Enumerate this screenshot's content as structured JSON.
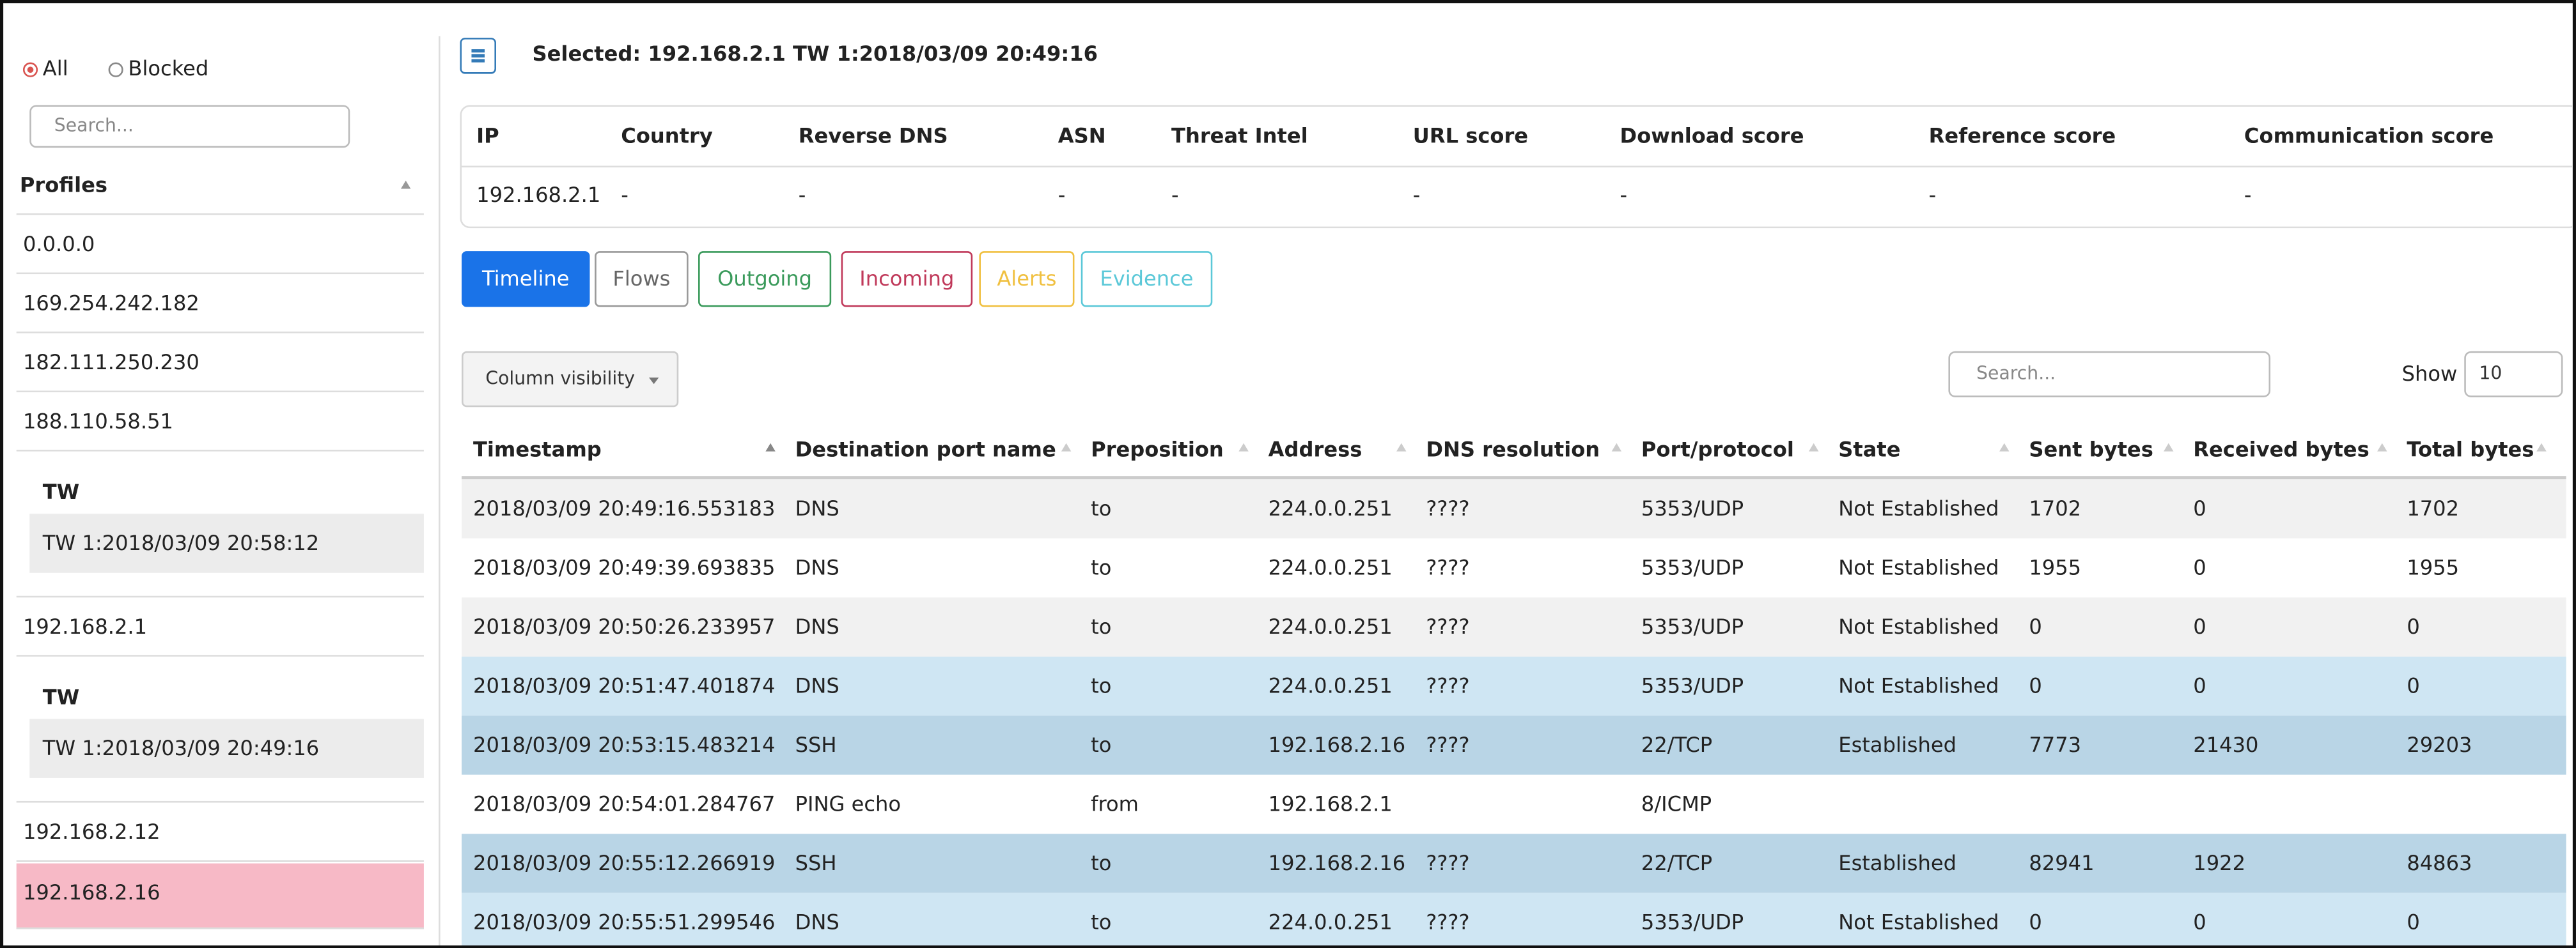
{
  "sidebar": {
    "filters": [
      "All",
      "Blocked"
    ],
    "search_placeholder": "Search...",
    "profiles_header": "Profiles",
    "items": [
      {
        "kind": "profile",
        "label": "0.0.0.0"
      },
      {
        "kind": "profile",
        "label": "169.254.242.182"
      },
      {
        "kind": "profile",
        "label": "182.111.250.230"
      },
      {
        "kind": "profile",
        "label": "188.110.58.51"
      },
      {
        "kind": "tw_header",
        "label": "TW"
      },
      {
        "kind": "tw",
        "label": "TW 1:2018/03/09 20:58:12"
      },
      {
        "kind": "profile",
        "label": "192.168.2.1"
      },
      {
        "kind": "tw_header",
        "label": "TW"
      },
      {
        "kind": "tw",
        "label": "TW 1:2018/03/09 20:49:16"
      },
      {
        "kind": "profile",
        "label": "192.168.2.12"
      },
      {
        "kind": "selected",
        "label": "192.168.2.16"
      }
    ]
  },
  "header": {
    "selected": "Selected: 192.168.2.1 TW 1:2018/03/09 20:49:16"
  },
  "info": {
    "columns": [
      "IP",
      "Country",
      "Reverse DNS",
      "ASN",
      "Threat Intel",
      "URL score",
      "Download score",
      "Reference score",
      "Communication score"
    ],
    "values": [
      "192.168.2.1",
      "-",
      "-",
      "-",
      "-",
      "-",
      "-",
      "-",
      "-"
    ]
  },
  "tabs": [
    "Timeline",
    "Flows",
    "Outgoing",
    "Incoming",
    "Alerts",
    "Evidence"
  ],
  "controls": {
    "column_visibility": "Column visibility",
    "search_placeholder": "Search...",
    "show_label": "Show",
    "show_value": "10"
  },
  "table": {
    "columns": [
      "Timestamp",
      "Destination port name",
      "Preposition",
      "Address",
      "DNS resolution",
      "Port/protocol",
      "State",
      "Sent bytes",
      "Received bytes",
      "Total bytes"
    ],
    "rows": [
      [
        "2018/03/09 20:49:16.553183",
        "DNS",
        "to",
        "224.0.0.251",
        "????",
        "5353/UDP",
        "Not Established",
        "1702",
        "0",
        "1702"
      ],
      [
        "2018/03/09 20:49:39.693835",
        "DNS",
        "to",
        "224.0.0.251",
        "????",
        "5353/UDP",
        "Not Established",
        "1955",
        "0",
        "1955"
      ],
      [
        "2018/03/09 20:50:26.233957",
        "DNS",
        "to",
        "224.0.0.251",
        "????",
        "5353/UDP",
        "Not Established",
        "0",
        "0",
        "0"
      ],
      [
        "2018/03/09 20:51:47.401874",
        "DNS",
        "to",
        "224.0.0.251",
        "????",
        "5353/UDP",
        "Not Established",
        "0",
        "0",
        "0"
      ],
      [
        "2018/03/09 20:53:15.483214",
        "SSH",
        "to",
        "192.168.2.16",
        "????",
        "22/TCP",
        "Established",
        "7773",
        "21430",
        "29203"
      ],
      [
        "2018/03/09 20:54:01.284767",
        "PING echo",
        "from",
        "192.168.2.1",
        null,
        "8/ICMP",
        null,
        null,
        null,
        null
      ],
      [
        "2018/03/09 20:55:12.266919",
        "SSH",
        "to",
        "192.168.2.16",
        "????",
        "22/TCP",
        "Established",
        "82941",
        "1922",
        "84863"
      ],
      [
        "2018/03/09 20:55:51.299546",
        "DNS",
        "to",
        "224.0.0.251",
        "????",
        "5353/UDP",
        "Not Established",
        "0",
        "0",
        "0"
      ]
    ]
  }
}
